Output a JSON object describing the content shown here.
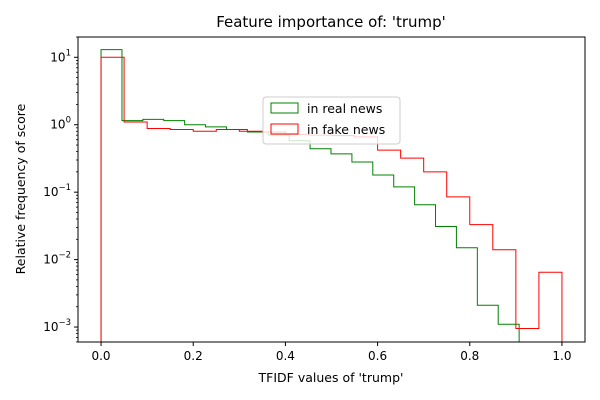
{
  "chart_data": {
    "type": "histogram-step",
    "title": "Feature importance of: 'trump'",
    "xlabel": "TFIDF values of 'trump'",
    "ylabel": "Relative frequency of score",
    "yscale": "log",
    "xlim": [
      -0.05,
      1.05
    ],
    "ylim": [
      0.0006,
      20
    ],
    "x_ticks": [
      {
        "value": 0.0,
        "label": "0.0"
      },
      {
        "value": 0.2,
        "label": "0.2"
      },
      {
        "value": 0.4,
        "label": "0.4"
      },
      {
        "value": 0.6,
        "label": "0.6"
      },
      {
        "value": 0.8,
        "label": "0.8"
      },
      {
        "value": 1.0,
        "label": "1.0"
      }
    ],
    "y_ticks": [
      {
        "value": 10,
        "base": "10",
        "exp": "1"
      },
      {
        "value": 1,
        "base": "10",
        "exp": "0"
      },
      {
        "value": 0.1,
        "base": "10",
        "exp": "−1"
      },
      {
        "value": 0.01,
        "base": "10",
        "exp": "−2"
      },
      {
        "value": 0.001,
        "base": "10",
        "exp": "−3"
      }
    ],
    "legend_position": "center",
    "series": [
      {
        "name": "in real news",
        "color": "#008000",
        "bin_edges": [
          0.0,
          0.0454,
          0.0907,
          0.1361,
          0.1814,
          0.2268,
          0.2721,
          0.3175,
          0.3628,
          0.4082,
          0.4535,
          0.4989,
          0.5443,
          0.5896,
          0.635,
          0.6803,
          0.7257,
          0.771,
          0.8164,
          0.8617,
          0.9071
        ],
        "values": [
          13,
          1.15,
          1.2,
          1.15,
          1.0,
          0.93,
          0.85,
          0.78,
          0.7,
          0.58,
          0.44,
          0.37,
          0.28,
          0.18,
          0.12,
          0.065,
          0.031,
          0.015,
          0.0021,
          0.0011
        ]
      },
      {
        "name": "in fake news",
        "color": "#ff0000",
        "bin_edges": [
          0.0,
          0.05,
          0.1,
          0.15,
          0.2,
          0.25,
          0.3,
          0.35,
          0.4,
          0.45,
          0.5,
          0.55,
          0.6,
          0.65,
          0.7,
          0.75,
          0.8,
          0.85,
          0.9,
          0.95,
          1.0
        ],
        "values": [
          10,
          1.1,
          0.88,
          0.85,
          0.8,
          0.85,
          0.8,
          0.78,
          0.72,
          0.7,
          0.69,
          0.66,
          0.42,
          0.32,
          0.2,
          0.085,
          0.033,
          0.014,
          0.00095,
          0.0065
        ]
      }
    ]
  }
}
